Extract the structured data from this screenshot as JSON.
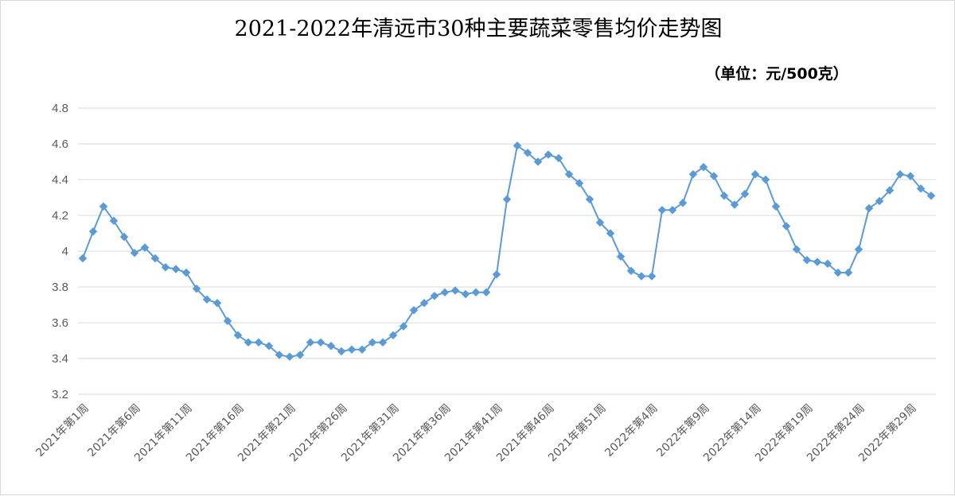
{
  "chart_data": {
    "type": "line",
    "title": "2021-2022年清远市30种主要蔬菜零售均价走势图",
    "unit_label": "（单位：元/500克）",
    "ylim": [
      3.2,
      4.8
    ],
    "yticks": [
      "3.2",
      "3.4",
      "3.6",
      "3.8",
      "4",
      "4.2",
      "4.4",
      "4.6",
      "4.8"
    ],
    "ytick_values": [
      3.2,
      3.4,
      3.6,
      3.8,
      4.0,
      4.2,
      4.4,
      4.6,
      4.8
    ],
    "grid": true,
    "legend": "none",
    "color": "#5b9bd5",
    "xtick_labels": [
      "2021年第1周",
      "2021年第6周",
      "2021年第11周",
      "2021年第16周",
      "2021年第21周",
      "2021年第26周",
      "2021年第31周",
      "2021年第36周",
      "2021年第41周",
      "2021年第46周",
      "2021年第51周",
      "2022年第4周",
      "2022年第9周",
      "2022年第14周",
      "2022年第19周",
      "2022年第24周",
      "2022年第29周"
    ],
    "xtick_every": 5,
    "series": [
      {
        "values": [
          3.96,
          4.11,
          4.25,
          4.17,
          4.08,
          3.99,
          4.02,
          3.96,
          3.91,
          3.9,
          3.88,
          3.79,
          3.73,
          3.71,
          3.61,
          3.53,
          3.49,
          3.49,
          3.47,
          3.42,
          3.41,
          3.42,
          3.49,
          3.49,
          3.47,
          3.44,
          3.45,
          3.45,
          3.49,
          3.49,
          3.53,
          3.58,
          3.67,
          3.71,
          3.75,
          3.77,
          3.78,
          3.76,
          3.77,
          3.77,
          3.87,
          4.29,
          4.59,
          4.55,
          4.5,
          4.54,
          4.52,
          4.43,
          4.38,
          4.29,
          4.16,
          4.1,
          3.97,
          3.89,
          3.86,
          3.86,
          4.23,
          4.23,
          4.27,
          4.43,
          4.47,
          4.42,
          4.31,
          4.26,
          4.32,
          4.43,
          4.4,
          4.25,
          4.14,
          4.01,
          3.95,
          3.94,
          3.93,
          3.88,
          3.88,
          4.01,
          4.24,
          4.28,
          4.34,
          4.43,
          4.42,
          4.35,
          4.31
        ]
      }
    ]
  }
}
